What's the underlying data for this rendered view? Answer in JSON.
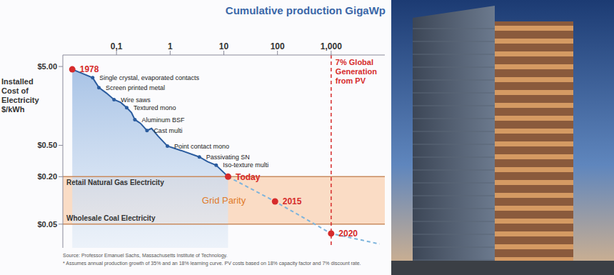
{
  "chart_data": {
    "type": "line",
    "x_label": "Cumulative production GigaWp",
    "y_label": "Installed Cost of Electricity $/kWh",
    "log": true,
    "xlim": [
      0.01,
      10000
    ],
    "xticks": [
      {
        "value": 0.1,
        "label": "0,1"
      },
      1,
      10,
      100,
      {
        "value": 1000,
        "label": "1,000"
      }
    ],
    "ylim": [
      0.025,
      7
    ],
    "yticks": [
      {
        "value": 0.05,
        "label": "$0.05"
      },
      {
        "value": 0.2,
        "label": "$0.20"
      },
      {
        "value": 0.5,
        "label": "$0.50"
      },
      {
        "value": 5,
        "label": "$5.00"
      }
    ],
    "series": [
      {
        "type": "area",
        "color": "#2b5c9e",
        "marker": "circle",
        "x": [
          0.015,
          0.025,
          0.036,
          0.047,
          0.065,
          0.09,
          0.12,
          0.155,
          0.19,
          0.22,
          0.28,
          0.37,
          0.45,
          0.6,
          0.89,
          1.6,
          3.5,
          5,
          7.2,
          12
        ],
        "values": [
          4.6,
          4.0,
          3.6,
          2.7,
          2.3,
          1.9,
          1.75,
          1.5,
          1.3,
          1.06,
          0.95,
          0.77,
          0.82,
          0.65,
          0.49,
          0.43,
          0.356,
          0.31,
          0.28,
          0.2
        ],
        "point_labels": [
          null,
          null,
          "Single crystal, evaporated contacts",
          "Screen printed metal",
          null,
          "Wire saws",
          null,
          "Textured mono",
          null,
          "Aluminum BSF",
          null,
          "Cast multi",
          null,
          null,
          "Point contact mono",
          null,
          "Passivating SN",
          null,
          "Iso-texture multi",
          null
        ]
      },
      {
        "type": "line",
        "color": "#7db4dc",
        "line_style": "dashed",
        "x": [
          12,
          90,
          1000,
          8000
        ],
        "values": [
          0.2,
          0.097,
          0.038,
          0.028
        ]
      },
      {
        "type": "scatter",
        "color": "#d62b2b",
        "marker": "circle",
        "x": [
          0.015,
          12,
          90,
          1000
        ],
        "values": [
          4.6,
          0.2,
          0.097,
          0.038
        ],
        "point_labels": [
          "1978",
          "Today",
          "2015",
          "2020"
        ]
      }
    ],
    "bands": [
      {
        "label": "Grid Parity",
        "from": 0.05,
        "to": 0.2,
        "color": "#fadcc5"
      }
    ],
    "reference_lines": [
      {
        "axis": "y",
        "value": 0.2,
        "label": "Retail Natural Gas Electricity",
        "color": "#c98b5f"
      },
      {
        "axis": "y",
        "value": 0.05,
        "label": "Wholesale Coal Electricity",
        "color": "#c98b5f"
      },
      {
        "axis": "x",
        "value": 1000,
        "label": "7% Global Generation from PV",
        "color": "#d62b2b",
        "line_style": "dashed"
      }
    ],
    "notes": [
      "Source: Professor Emanuel Sachs, Massachusetts Institute of Technology.",
      "* Assumes annual production growth of 35% and an 18% learning curve. PV costs based on 18% capacity factor and 7% discount rate."
    ]
  }
}
